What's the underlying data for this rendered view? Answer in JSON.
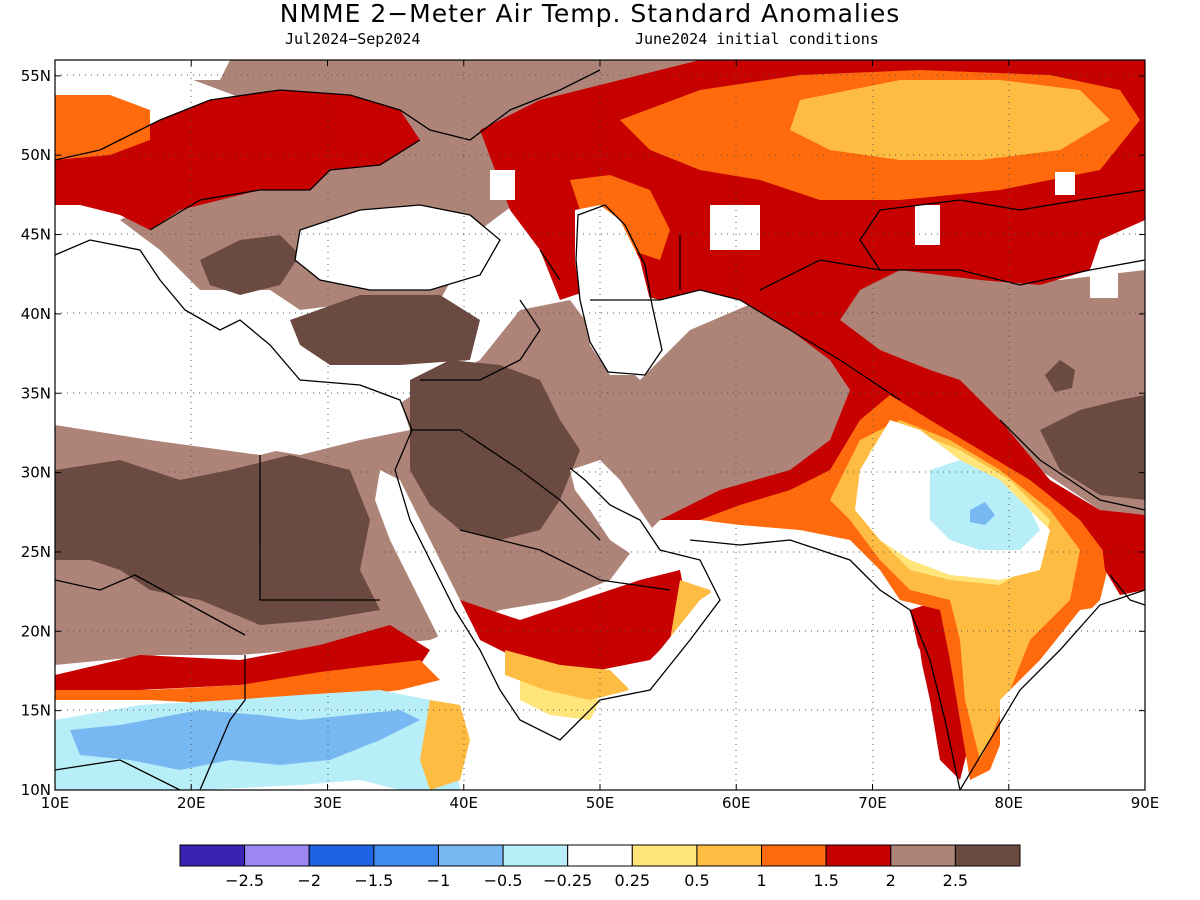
{
  "title": "NMME 2−Meter Air Temp. Standard Anomalies",
  "subtitle_left": "Jul2024−Sep2024",
  "subtitle_right": "June2024 initial conditions",
  "map": {
    "lon_range": [
      10,
      90
    ],
    "lat_range": [
      10,
      56
    ],
    "lon_ticks": [
      "10E",
      "20E",
      "30E",
      "40E",
      "50E",
      "60E",
      "70E",
      "80E",
      "90E"
    ],
    "lat_ticks": [
      "10N",
      "15N",
      "20N",
      "25N",
      "30N",
      "35N",
      "40N",
      "45N",
      "50N",
      "55N"
    ],
    "grid": "dotted"
  },
  "colorbar": {
    "colors": [
      "#3a23b4",
      "#9b86f3",
      "#1f62e3",
      "#3e8bf0",
      "#78b8f2",
      "#b7eef8",
      "#ffffff",
      "#ffe57a",
      "#ffbc42",
      "#ff6a0c",
      "#c70000",
      "#ae8479",
      "#6b4a42"
    ],
    "labels": [
      "−2.5",
      "−2",
      "−1.5",
      "−1",
      "−0.5",
      "−0.25",
      "0.25",
      "0.5",
      "1",
      "1.5",
      "2",
      "2.5"
    ]
  }
}
